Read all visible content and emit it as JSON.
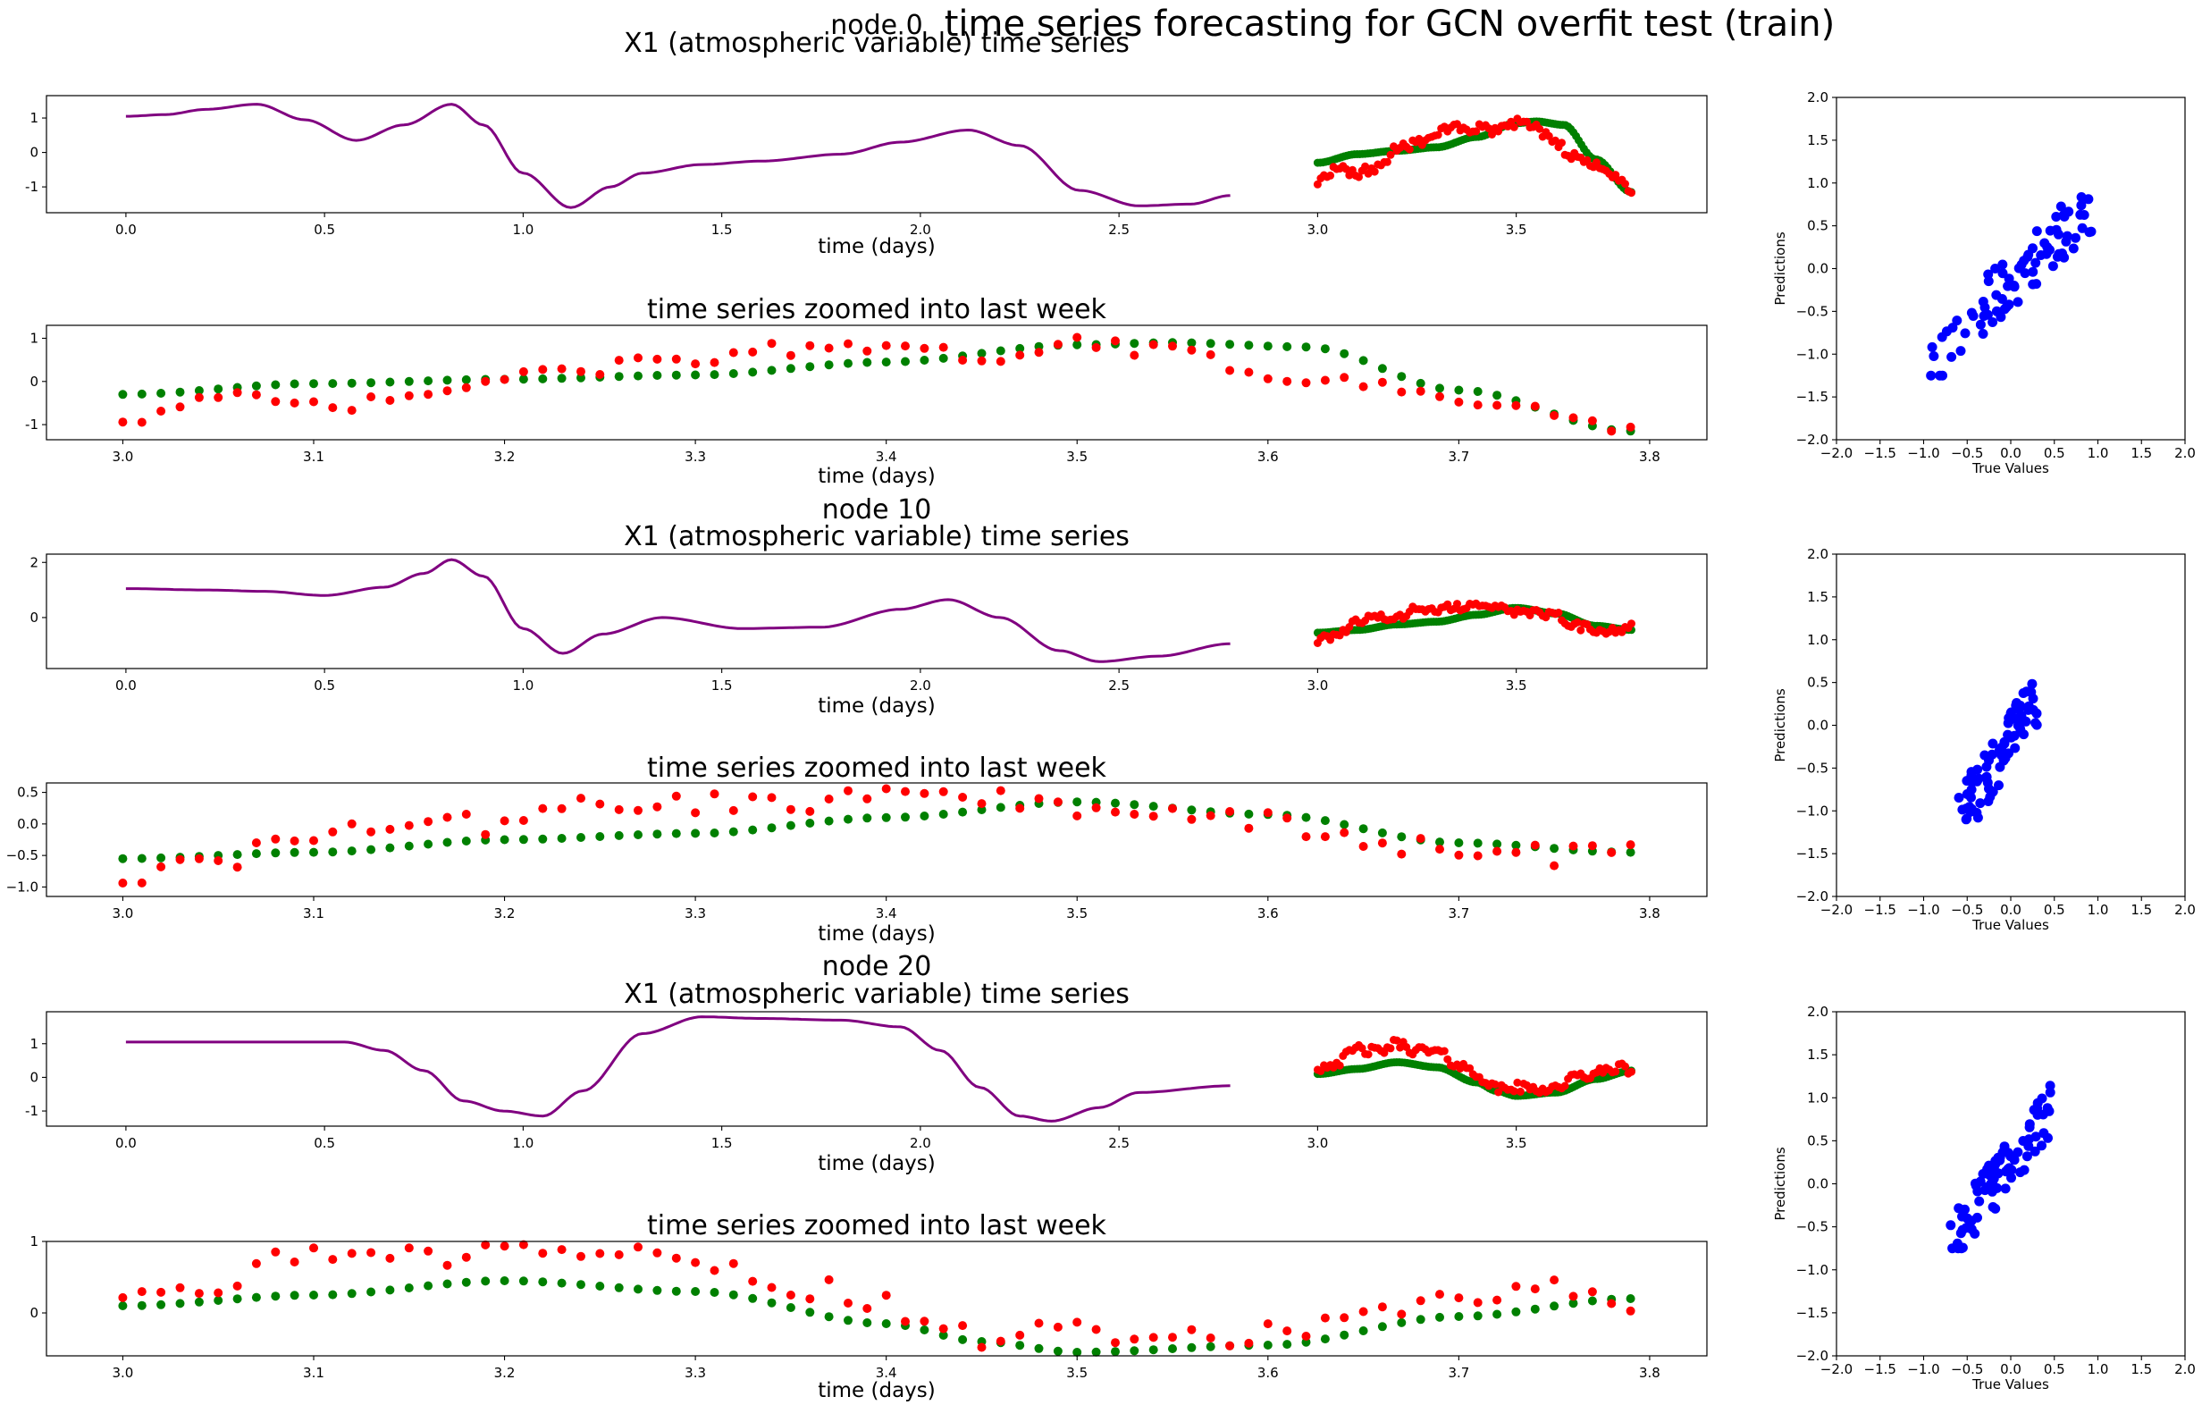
{
  "figure": {
    "title": "time series forecasting for GCN overfit test (train)",
    "colors": {
      "history": "#800080",
      "true": "#ff0000",
      "pred": "#008000",
      "scatter": "#0000ff"
    }
  },
  "chart_data": [
    {
      "node_title": "node 0",
      "ts_title": "X1 (atmospheric variable) time series",
      "zoom_title": "time series zoomed into last week",
      "xlabel": "time (days)",
      "scatter_xlabel": "True Values",
      "scatter_ylabel": "Predictions",
      "ts_ylim": [
        -1.75,
        1.65
      ],
      "ts_yticks": [
        -1,
        0,
        1
      ],
      "ts_xticks": [
        "0.0",
        "0.5",
        "1.0",
        "1.5",
        "2.0",
        "2.5",
        "3.0",
        "3.5"
      ],
      "zoom_ylim": [
        -1.35,
        1.3
      ],
      "zoom_yticks": [
        -1,
        0,
        1
      ],
      "zoom_xticks": [
        "3.0",
        "3.1",
        "3.2",
        "3.3",
        "3.4",
        "3.5",
        "3.6",
        "3.7",
        "3.8"
      ],
      "scatter_ticks": [
        "−2.0",
        "−1.5",
        "−1.0",
        "−0.5",
        "0.0",
        "0.5",
        "1.0",
        "1.5",
        "2.0"
      ],
      "history": [
        [
          0.0,
          1.05
        ],
        [
          0.1,
          1.1
        ],
        [
          0.2,
          1.25
        ],
        [
          0.33,
          1.4
        ],
        [
          0.45,
          0.95
        ],
        [
          0.58,
          0.35
        ],
        [
          0.7,
          0.8
        ],
        [
          0.82,
          1.4
        ],
        [
          0.9,
          0.8
        ],
        [
          1.0,
          -0.6
        ],
        [
          1.12,
          -1.6
        ],
        [
          1.22,
          -1.0
        ],
        [
          1.3,
          -0.6
        ],
        [
          1.45,
          -0.35
        ],
        [
          1.6,
          -0.25
        ],
        [
          1.8,
          -0.05
        ],
        [
          1.95,
          0.3
        ],
        [
          2.12,
          0.65
        ],
        [
          2.25,
          0.2
        ],
        [
          2.4,
          -1.1
        ],
        [
          2.55,
          -1.55
        ],
        [
          2.68,
          -1.5
        ],
        [
          2.78,
          -1.25
        ]
      ],
      "pred_shape": [
        [
          3.0,
          -0.3
        ],
        [
          3.1,
          -0.05
        ],
        [
          3.2,
          0.05
        ],
        [
          3.3,
          0.15
        ],
        [
          3.4,
          0.45
        ],
        [
          3.5,
          0.85
        ],
        [
          3.55,
          0.9
        ],
        [
          3.62,
          0.8
        ],
        [
          3.7,
          -0.2
        ],
        [
          3.79,
          -1.15
        ]
      ],
      "true_shape": [
        [
          3.0,
          -0.85
        ],
        [
          3.05,
          -0.4
        ],
        [
          3.1,
          -0.6
        ],
        [
          3.15,
          -0.45
        ],
        [
          3.2,
          0.1
        ],
        [
          3.25,
          0.3
        ],
        [
          3.3,
          0.55
        ],
        [
          3.35,
          0.75
        ],
        [
          3.4,
          0.7
        ],
        [
          3.45,
          0.6
        ],
        [
          3.5,
          0.85
        ],
        [
          3.55,
          0.7
        ],
        [
          3.6,
          0.2
        ],
        [
          3.65,
          -0.1
        ],
        [
          3.7,
          -0.4
        ],
        [
          3.75,
          -0.7
        ],
        [
          3.79,
          -1.05
        ]
      ],
      "scatter": {
        "seed": 11,
        "n": 80,
        "x": [
          -1.1,
          0.95
        ],
        "y": [
          -1.25,
          1.15
        ],
        "slope": 0.9,
        "noise": 0.35
      }
    },
    {
      "node_title": "node 10",
      "ts_title": "X1 (atmospheric variable) time series",
      "zoom_title": "time series zoomed into last week",
      "xlabel": "time (days)",
      "scatter_xlabel": "True Values",
      "scatter_ylabel": "Predictions",
      "ts_ylim": [
        -1.85,
        2.3
      ],
      "ts_yticks": [
        0,
        2
      ],
      "ts_xticks": [
        "0.0",
        "0.5",
        "1.0",
        "1.5",
        "2.0",
        "2.5",
        "3.0",
        "3.5"
      ],
      "zoom_ylim": [
        -1.15,
        0.65
      ],
      "zoom_yticks": [
        "0.5",
        "0.0",
        "−0.5",
        "−1.0"
      ],
      "zoom_ytick_vals": [
        0.5,
        0.0,
        -0.5,
        -1.0
      ],
      "zoom_xticks": [
        "3.0",
        "3.1",
        "3.2",
        "3.3",
        "3.4",
        "3.5",
        "3.6",
        "3.7",
        "3.8"
      ],
      "scatter_ticks": [
        "−2.0",
        "−1.5",
        "−1.0",
        "−0.5",
        "0.0",
        "0.5",
        "1.0",
        "1.5",
        "2.0"
      ],
      "history": [
        [
          0.0,
          1.05
        ],
        [
          0.2,
          1.0
        ],
        [
          0.35,
          0.95
        ],
        [
          0.5,
          0.8
        ],
        [
          0.65,
          1.1
        ],
        [
          0.75,
          1.6
        ],
        [
          0.82,
          2.1
        ],
        [
          0.9,
          1.5
        ],
        [
          1.0,
          -0.4
        ],
        [
          1.1,
          -1.3
        ],
        [
          1.2,
          -0.6
        ],
        [
          1.35,
          0.0
        ],
        [
          1.55,
          -0.4
        ],
        [
          1.75,
          -0.35
        ],
        [
          1.95,
          0.3
        ],
        [
          2.07,
          0.65
        ],
        [
          2.2,
          0.0
        ],
        [
          2.35,
          -1.2
        ],
        [
          2.45,
          -1.6
        ],
        [
          2.6,
          -1.4
        ],
        [
          2.78,
          -0.95
        ]
      ],
      "pred_shape": [
        [
          3.0,
          -0.55
        ],
        [
          3.1,
          -0.45
        ],
        [
          3.2,
          -0.25
        ],
        [
          3.3,
          -0.15
        ],
        [
          3.4,
          0.1
        ],
        [
          3.5,
          0.35
        ],
        [
          3.6,
          0.15
        ],
        [
          3.7,
          -0.3
        ],
        [
          3.79,
          -0.45
        ]
      ],
      "true_shape": [
        [
          3.0,
          -0.85
        ],
        [
          3.05,
          -0.6
        ],
        [
          3.1,
          -0.2
        ],
        [
          3.15,
          0.0
        ],
        [
          3.2,
          0.0
        ],
        [
          3.25,
          0.35
        ],
        [
          3.3,
          0.3
        ],
        [
          3.35,
          0.35
        ],
        [
          3.4,
          0.5
        ],
        [
          3.45,
          0.45
        ],
        [
          3.5,
          0.2
        ],
        [
          3.55,
          0.15
        ],
        [
          3.6,
          0.05
        ],
        [
          3.65,
          -0.3
        ],
        [
          3.7,
          -0.45
        ],
        [
          3.75,
          -0.5
        ],
        [
          3.79,
          -0.3
        ]
      ],
      "scatter": {
        "seed": 23,
        "n": 80,
        "x": [
          -0.6,
          0.3
        ],
        "y": [
          -1.1,
          0.55
        ],
        "slope": 1.6,
        "noise": 0.35
      }
    },
    {
      "node_title": "node 20",
      "ts_title": "X1 (atmospheric variable) time series",
      "zoom_title": "time series zoomed into last week",
      "xlabel": "time (days)",
      "scatter_xlabel": "True Values",
      "scatter_ylabel": "Predictions",
      "ts_ylim": [
        -1.45,
        1.95
      ],
      "ts_yticks": [
        -1,
        0,
        1
      ],
      "ts_xticks": [
        "0.0",
        "0.5",
        "1.0",
        "1.5",
        "2.0",
        "2.5",
        "3.0",
        "3.5"
      ],
      "zoom_ylim": [
        -0.6,
        1.0
      ],
      "zoom_yticks": [
        0,
        1
      ],
      "zoom_xticks": [
        "3.0",
        "3.1",
        "3.2",
        "3.3",
        "3.4",
        "3.5",
        "3.6",
        "3.7",
        "3.8"
      ],
      "scatter_ticks": [
        "−2.0",
        "−1.5",
        "−1.0",
        "−0.5",
        "0.0",
        "0.5",
        "1.0",
        "1.5",
        "2.0"
      ],
      "history": [
        [
          0.0,
          1.05
        ],
        [
          0.3,
          1.05
        ],
        [
          0.55,
          1.05
        ],
        [
          0.65,
          0.8
        ],
        [
          0.75,
          0.2
        ],
        [
          0.85,
          -0.7
        ],
        [
          0.95,
          -1.0
        ],
        [
          1.05,
          -1.15
        ],
        [
          1.15,
          -0.4
        ],
        [
          1.3,
          1.3
        ],
        [
          1.45,
          1.8
        ],
        [
          1.6,
          1.75
        ],
        [
          1.8,
          1.7
        ],
        [
          1.95,
          1.5
        ],
        [
          2.05,
          0.8
        ],
        [
          2.15,
          -0.3
        ],
        [
          2.25,
          -1.15
        ],
        [
          2.33,
          -1.3
        ],
        [
          2.45,
          -0.9
        ],
        [
          2.55,
          -0.45
        ],
        [
          2.78,
          -0.25
        ]
      ],
      "pred_shape": [
        [
          3.0,
          0.1
        ],
        [
          3.1,
          0.25
        ],
        [
          3.2,
          0.45
        ],
        [
          3.3,
          0.3
        ],
        [
          3.4,
          -0.15
        ],
        [
          3.45,
          -0.4
        ],
        [
          3.5,
          -0.55
        ],
        [
          3.6,
          -0.45
        ],
        [
          3.7,
          -0.05
        ],
        [
          3.79,
          0.2
        ]
      ],
      "true_shape": [
        [
          3.0,
          0.3
        ],
        [
          3.05,
          0.45
        ],
        [
          3.1,
          0.85
        ],
        [
          3.15,
          0.75
        ],
        [
          3.2,
          1.0
        ],
        [
          3.25,
          0.8
        ],
        [
          3.3,
          0.75
        ],
        [
          3.35,
          0.4
        ],
        [
          3.4,
          0.1
        ],
        [
          3.45,
          -0.35
        ],
        [
          3.5,
          -0.3
        ],
        [
          3.55,
          -0.35
        ],
        [
          3.6,
          -0.3
        ],
        [
          3.65,
          0.0
        ],
        [
          3.7,
          0.1
        ],
        [
          3.75,
          0.3
        ],
        [
          3.79,
          0.2
        ]
      ],
      "scatter": {
        "seed": 37,
        "n": 80,
        "x": [
          -0.75,
          0.5
        ],
        "y": [
          -0.75,
          1.2
        ],
        "slope": 1.3,
        "noise": 0.3
      }
    }
  ]
}
